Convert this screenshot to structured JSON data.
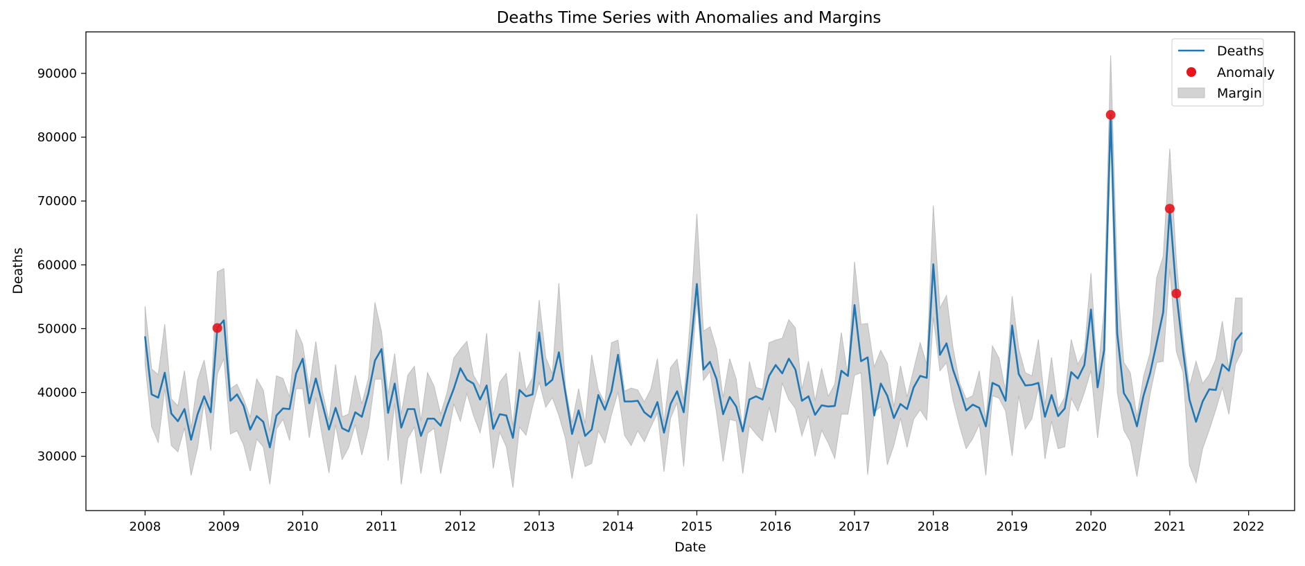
{
  "chart_data": {
    "type": "line",
    "title": "Deaths Time Series with Anomalies and Margins",
    "xlabel": "Date",
    "ylabel": "Deaths",
    "x_tick_labels": [
      "2008",
      "2009",
      "2010",
      "2011",
      "2012",
      "2013",
      "2014",
      "2015",
      "2016",
      "2017",
      "2018",
      "2019",
      "2020",
      "2021",
      "2022"
    ],
    "y_ticks": [
      30000,
      40000,
      50000,
      60000,
      70000,
      80000,
      90000
    ],
    "y_tick_labels": [
      "30000",
      "40000",
      "50000",
      "60000",
      "70000",
      "80000",
      "90000"
    ],
    "xlim": [
      "2007-04",
      "2022-08"
    ],
    "ylim": [
      21500,
      96500
    ],
    "grid": false,
    "legend_position": "upper right",
    "legend": [
      "Deaths",
      "Anomaly",
      "Margin"
    ],
    "colors": {
      "line": "#1f77b4",
      "anomaly": "#e8141c",
      "margin": "#d3d3d3",
      "margin_edge": "#bdbdbd"
    },
    "dates": [
      "2008-01",
      "2008-02",
      "2008-03",
      "2008-04",
      "2008-05",
      "2008-06",
      "2008-07",
      "2008-08",
      "2008-09",
      "2008-10",
      "2008-11",
      "2008-12",
      "2009-01",
      "2009-02",
      "2009-03",
      "2009-04",
      "2009-05",
      "2009-06",
      "2009-07",
      "2009-08",
      "2009-09",
      "2009-10",
      "2009-11",
      "2009-12",
      "2010-01",
      "2010-02",
      "2010-03",
      "2010-04",
      "2010-05",
      "2010-06",
      "2010-07",
      "2010-08",
      "2010-09",
      "2010-10",
      "2010-11",
      "2010-12",
      "2011-01",
      "2011-02",
      "2011-03",
      "2011-04",
      "2011-05",
      "2011-06",
      "2011-07",
      "2011-08",
      "2011-09",
      "2011-10",
      "2011-11",
      "2011-12",
      "2012-01",
      "2012-02",
      "2012-03",
      "2012-04",
      "2012-05",
      "2012-06",
      "2012-07",
      "2012-08",
      "2012-09",
      "2012-10",
      "2012-11",
      "2012-12",
      "2013-01",
      "2013-02",
      "2013-03",
      "2013-04",
      "2013-05",
      "2013-06",
      "2013-07",
      "2013-08",
      "2013-09",
      "2013-10",
      "2013-11",
      "2013-12",
      "2014-01",
      "2014-02",
      "2014-03",
      "2014-04",
      "2014-05",
      "2014-06",
      "2014-07",
      "2014-08",
      "2014-09",
      "2014-10",
      "2014-11",
      "2014-12",
      "2015-01",
      "2015-02",
      "2015-03",
      "2015-04",
      "2015-05",
      "2015-06",
      "2015-07",
      "2015-08",
      "2015-09",
      "2015-10",
      "2015-11",
      "2015-12",
      "2016-01",
      "2016-02",
      "2016-03",
      "2016-04",
      "2016-05",
      "2016-06",
      "2016-07",
      "2016-08",
      "2016-09",
      "2016-10",
      "2016-11",
      "2016-12",
      "2017-01",
      "2017-02",
      "2017-03",
      "2017-04",
      "2017-05",
      "2017-06",
      "2017-07",
      "2017-08",
      "2017-09",
      "2017-10",
      "2017-11",
      "2017-12",
      "2018-01",
      "2018-02",
      "2018-03",
      "2018-04",
      "2018-05",
      "2018-06",
      "2018-07",
      "2018-08",
      "2018-09",
      "2018-10",
      "2018-11",
      "2018-12",
      "2019-01",
      "2019-02",
      "2019-03",
      "2019-04",
      "2019-05",
      "2019-06",
      "2019-07",
      "2019-08",
      "2019-09",
      "2019-10",
      "2019-11",
      "2019-12",
      "2020-01",
      "2020-02",
      "2020-03",
      "2020-04",
      "2020-05",
      "2020-06",
      "2020-07",
      "2020-08",
      "2020-09",
      "2020-10",
      "2020-11",
      "2020-12",
      "2021-01",
      "2021-02",
      "2021-03",
      "2021-04",
      "2021-05",
      "2021-06",
      "2021-07",
      "2021-08",
      "2021-09",
      "2021-10",
      "2021-11",
      "2021-12"
    ],
    "series": [
      {
        "name": "Deaths",
        "values": [
          48800,
          39700,
          39200,
          43100,
          36700,
          35500,
          37400,
          32600,
          36600,
          39400,
          36900,
          50100,
          51300,
          38700,
          39700,
          37900,
          34200,
          36300,
          35400,
          31400,
          36400,
          37500,
          37400,
          43000,
          45300,
          38300,
          42200,
          38200,
          34200,
          37600,
          34400,
          33900,
          36900,
          36200,
          39900,
          45000,
          46800,
          36800,
          41400,
          34500,
          37400,
          37400,
          33200,
          35900,
          35900,
          34800,
          37900,
          40600,
          43800,
          42000,
          41400,
          38900,
          41100,
          34300,
          36600,
          36400,
          32900,
          40400,
          39400,
          39700,
          49400,
          41100,
          42000,
          46300,
          39900,
          33500,
          37200,
          33200,
          34200,
          39600,
          37300,
          40200,
          45900,
          38600,
          38600,
          38700,
          36900,
          36100,
          38500,
          33700,
          38200,
          40200,
          36900,
          46300,
          57000,
          43600,
          44800,
          42100,
          36600,
          39300,
          37800,
          33900,
          38900,
          39400,
          38900,
          42600,
          44300,
          43000,
          45300,
          43600,
          38700,
          39400,
          36500,
          38000,
          37800,
          37900,
          43400,
          42600,
          53700,
          44900,
          45500,
          36400,
          41400,
          39500,
          36000,
          38200,
          37400,
          40800,
          42600,
          42300,
          60100,
          45900,
          47700,
          43600,
          40600,
          37200,
          38100,
          37600,
          34700,
          41500,
          41000,
          38700,
          50500,
          42900,
          41100,
          41200,
          41500,
          36200,
          39600,
          36300,
          37500,
          43200,
          42200,
          44300,
          53000,
          40800,
          46600,
          83500,
          49200,
          39900,
          38200,
          34700,
          39500,
          43000,
          47800,
          52600,
          68800,
          55500,
          46600,
          38900,
          35400,
          38600,
          40500,
          40400,
          44400,
          43400,
          48100,
          49400
        ]
      },
      {
        "name": "Anomaly",
        "points": [
          {
            "date": "2008-12",
            "value": 50100
          },
          {
            "date": "2020-04",
            "value": 83500
          },
          {
            "date": "2021-01",
            "value": 68800
          },
          {
            "date": "2021-02",
            "value": 55500
          }
        ]
      },
      {
        "name": "Margin",
        "lower": [
          44500,
          34600,
          32200,
          40600,
          31700,
          30700,
          34500,
          27000,
          31300,
          38600,
          30900,
          42900,
          45300,
          33500,
          34000,
          31800,
          27700,
          32700,
          31500,
          25600,
          34300,
          35800,
          32500,
          40600,
          40600,
          32900,
          39200,
          33000,
          27400,
          35000,
          29500,
          31400,
          35000,
          30200,
          34400,
          42100,
          42100,
          29300,
          38300,
          25600,
          32800,
          34600,
          27300,
          33600,
          34400,
          27300,
          32500,
          38200,
          35500,
          39900,
          36400,
          33700,
          38700,
          28100,
          33800,
          31500,
          25100,
          34600,
          33300,
          37800,
          41600,
          37700,
          39200,
          36400,
          32800,
          26500,
          32400,
          28400,
          28900,
          34000,
          32100,
          36500,
          40100,
          33300,
          31700,
          34000,
          32300,
          34600,
          36800,
          27600,
          36000,
          38400,
          28400,
          41100,
          54500,
          41900,
          43300,
          36800,
          29200,
          35800,
          35500,
          27300,
          34800,
          33500,
          32400,
          37700,
          33700,
          41500,
          38900,
          37500,
          33200,
          36400,
          30000,
          34100,
          32100,
          29700,
          36600,
          36600,
          42700,
          43100,
          27100,
          36900,
          37800,
          28700,
          31700,
          36000,
          31400,
          35800,
          37300,
          35700,
          51800,
          43400,
          44700,
          38800,
          34700,
          31200,
          32800,
          35000,
          27000,
          39500,
          39100,
          37100,
          30100,
          39500,
          34300,
          35900,
          40800,
          29600,
          35500,
          31200,
          31500,
          39100,
          37100,
          40000,
          43500,
          32900,
          41200,
          80800,
          40100,
          34100,
          32300,
          26800,
          33300,
          39800,
          44700,
          44900,
          59400,
          46400,
          43200,
          28600,
          25900,
          31200,
          34100,
          37300,
          40800,
          36600,
          44400,
          46500
        ],
        "upper": [
          53500,
          43700,
          42800,
          50700,
          39000,
          37900,
          43400,
          34300,
          42000,
          45100,
          38500,
          58900,
          59400,
          40600,
          41300,
          39000,
          36100,
          42100,
          40400,
          33900,
          42600,
          42200,
          39300,
          49900,
          47500,
          40700,
          48000,
          40200,
          35600,
          44400,
          36200,
          36600,
          42700,
          38200,
          42200,
          54100,
          49500,
          39700,
          46100,
          36600,
          42700,
          44100,
          35500,
          43100,
          41000,
          36600,
          40100,
          45400,
          46800,
          48000,
          42700,
          40900,
          49300,
          36300,
          41600,
          43000,
          34600,
          46400,
          40400,
          42300,
          54500,
          45500,
          42900,
          57100,
          40800,
          35200,
          40600,
          35100,
          45900,
          40400,
          38400,
          47800,
          48200,
          40200,
          40700,
          40400,
          38500,
          40500,
          45300,
          35200,
          43900,
          45200,
          38700,
          51300,
          68000,
          49600,
          50300,
          46800,
          39200,
          45300,
          42100,
          34100,
          44800,
          40800,
          40500,
          47800,
          48200,
          48500,
          51400,
          50100,
          40500,
          44900,
          38700,
          43800,
          39400,
          41300,
          49400,
          42400,
          60500,
          50700,
          50800,
          44000,
          46600,
          44600,
          37700,
          44200,
          39300,
          43600,
          47800,
          44400,
          69300,
          53200,
          55200,
          47000,
          41500,
          39000,
          39500,
          43400,
          35600,
          47300,
          45400,
          40200,
          55100,
          46900,
          43100,
          42600,
          48300,
          38000,
          45500,
          37400,
          39200,
          48300,
          44400,
          46400,
          58700,
          42300,
          53000,
          92800,
          58200,
          44700,
          43100,
          36100,
          42500,
          46200,
          58000,
          61300,
          78200,
          60600,
          49100,
          40900,
          44900,
          41400,
          42800,
          45200,
          51200,
          43600,
          54800,
          54800
        ]
      }
    ]
  }
}
